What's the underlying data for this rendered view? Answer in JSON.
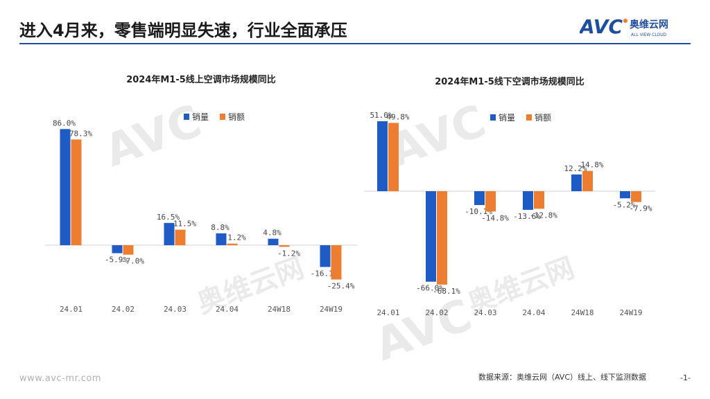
{
  "header": {
    "title": "进入4月来，零售端明显失速，行业全面承压",
    "logo_text": "AVC",
    "logo_cn": "奥维云网",
    "logo_en": "ALL VIEW CLOUD"
  },
  "colors": {
    "series1": "#1f5bc4",
    "series2": "#ed7d31",
    "title_rule": "#1f4e9e"
  },
  "chart_data": [
    {
      "type": "bar",
      "title": "2024年M1-5线上空调市场规模同比",
      "categories": [
        "24.01",
        "24.02",
        "24.03",
        "24.04",
        "24W18",
        "24W19"
      ],
      "series": [
        {
          "name": "销量",
          "values": [
            86.0,
            -5.9,
            16.5,
            8.8,
            4.8,
            -16.1
          ],
          "labels": [
            "86.0%",
            "-5.9%",
            "16.5%",
            "8.8%",
            "4.8%",
            "-16.1%"
          ]
        },
        {
          "name": "销额",
          "values": [
            78.3,
            -7.0,
            11.5,
            1.2,
            -1.2,
            -25.4
          ],
          "labels": [
            "78.3%",
            "-7.0%",
            "11.5%",
            "1.2%",
            "-1.2%",
            "-25.4%"
          ]
        }
      ],
      "legend": "top-right"
    },
    {
      "type": "bar",
      "title": "2024年M1-5线下空调市场规模同比",
      "categories": [
        "24.01",
        "24.02",
        "24.03",
        "24.04",
        "24W18",
        "24W19"
      ],
      "series": [
        {
          "name": "销量",
          "values": [
            51.0,
            -66.0,
            -10.1,
            -13.6,
            12.2,
            -5.2
          ],
          "labels": [
            "51.0%",
            "-66.0%",
            "-10.1%",
            "-13.6%",
            "12.2%",
            "-5.2%"
          ]
        },
        {
          "name": "销额",
          "values": [
            49.8,
            -68.1,
            -14.8,
            -12.8,
            14.8,
            -7.9
          ],
          "labels": [
            "49.8%",
            "-68.1%",
            "-14.8%",
            "-12.8%",
            "14.8%",
            "-7.9%"
          ]
        }
      ],
      "legend": "top-right"
    }
  ],
  "footer": {
    "website": "www.avc-mr.com",
    "source": "数据来源：奥维云网（AVC）线上、线下监测数据",
    "page": "-1-"
  }
}
